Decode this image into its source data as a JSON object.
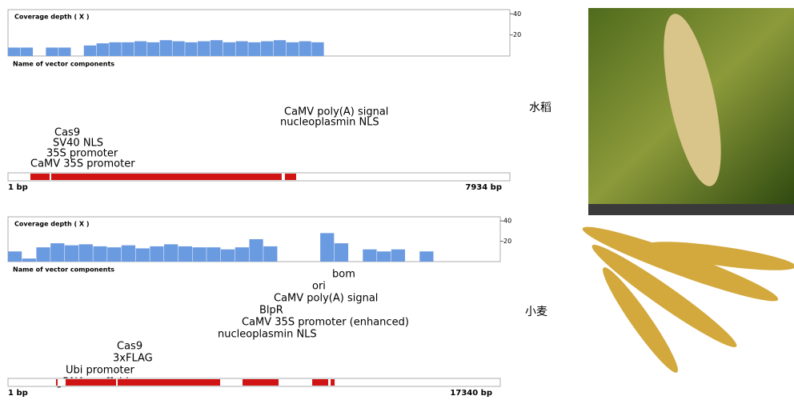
{
  "chart_data": [
    {
      "type": "coverage",
      "title": "Coverage depth ( X )",
      "ylim": [
        0,
        44
      ],
      "yticks": [
        20,
        40
      ],
      "x": [
        0,
        200,
        400,
        600,
        800,
        1000,
        1200,
        1400,
        1600,
        1800,
        2000,
        2200,
        2400,
        2600,
        2800,
        3000,
        3200,
        3400,
        3600,
        3800,
        4000,
        4200,
        4400,
        4600,
        4800
      ],
      "values": [
        8,
        8,
        0,
        8,
        8,
        0,
        10,
        12,
        13,
        13,
        14,
        13,
        15,
        14,
        13,
        14,
        15,
        13,
        14,
        13,
        14,
        15,
        13,
        14,
        13
      ],
      "color": "#6a9ae0",
      "map_title": "Name of vector components",
      "components": [
        "CaMV poly(A) signal",
        "nucleoplasmin NLS",
        "Cas9",
        "SV40 NLS",
        "35S promoter",
        "CaMV 35S promoter"
      ],
      "xlim": [
        1,
        7934
      ],
      "xlim_labels": [
        "1 bp",
        "7934 bp"
      ],
      "segments": [
        [
          355,
          659
        ],
        [
          684,
          4327
        ],
        [
          4378,
          4556
        ]
      ],
      "segment_color": "#d01414",
      "crop": "水稻"
    },
    {
      "type": "coverage",
      "title": "Coverage depth ( X )",
      "ylim": [
        0,
        44
      ],
      "yticks": [
        20,
        40
      ],
      "x": [
        0,
        500,
        1000,
        1500,
        2000,
        2500,
        3000,
        3500,
        4000,
        4500,
        5000,
        5500,
        6000,
        6500,
        7000,
        7500,
        8000,
        8500,
        9000,
        9500,
        10000,
        10500,
        11000,
        11500,
        12000,
        12500,
        13000,
        13500,
        14000,
        14500
      ],
      "values": [
        10,
        3,
        14,
        18,
        16,
        17,
        15,
        14,
        16,
        13,
        15,
        17,
        15,
        14,
        14,
        12,
        14,
        22,
        15,
        0,
        0,
        0,
        28,
        18,
        0,
        12,
        10,
        12,
        0,
        10
      ],
      "color": "#6a9ae0",
      "map_title": "Name of vector components",
      "components": [
        "bom",
        "ori",
        "CaMV poly(A) signal",
        "BlpR",
        "CaMV 35S promoter (enhanced)",
        "nucleoplasmin NLS",
        "Cas9",
        "3xFLAG",
        "Ubi promoter",
        "gRNA scaffold"
      ],
      "xlim": [
        1,
        17340
      ],
      "xlim_labels": [
        "1 bp",
        "17340 bp"
      ],
      "segments": [
        [
          1692,
          1748
        ],
        [
          2030,
          3808
        ],
        [
          3864,
          7473
        ],
        [
          8262,
          9531
        ],
        [
          10716,
          11280
        ],
        [
          11365,
          11506
        ]
      ],
      "segment_color": "#d01414",
      "crop": "小麦"
    }
  ]
}
